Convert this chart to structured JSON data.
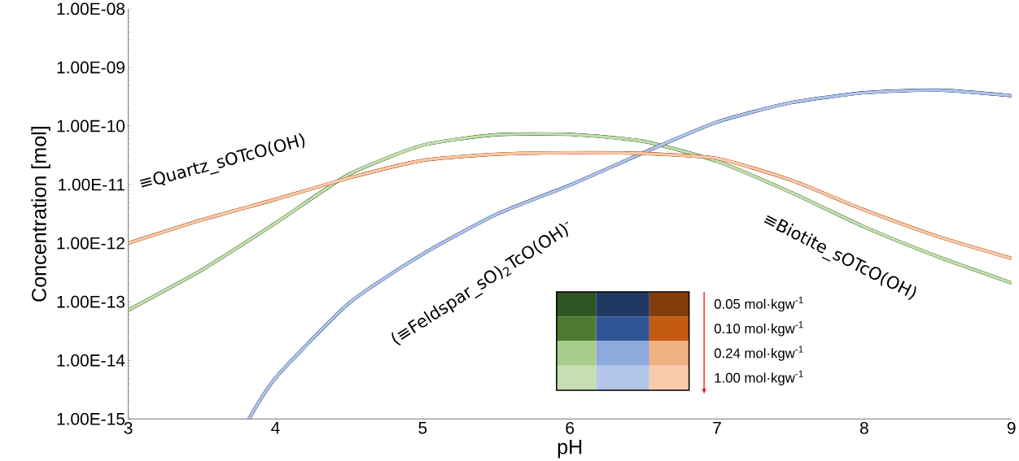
{
  "chart_data": {
    "type": "line",
    "xlabel": "pH",
    "ylabel": "Concentration [mol]",
    "log": "y",
    "xlim": [
      3,
      9
    ],
    "xticks": [
      3,
      4,
      5,
      6,
      7,
      8,
      9
    ],
    "ylim": [
      1e-15,
      1e-08
    ],
    "yticks": [
      {
        "value": 1e-15,
        "label": "1.00E-15"
      },
      {
        "value": 1e-14,
        "label": "1.00E-14"
      },
      {
        "value": 1e-13,
        "label": "1.00E-13"
      },
      {
        "value": 1e-12,
        "label": "1.00E-12"
      },
      {
        "value": 1e-11,
        "label": "1.00E-11"
      },
      {
        "value": 1e-10,
        "label": "1.00E-10"
      },
      {
        "value": 1e-09,
        "label": "1.00E-09"
      },
      {
        "value": 1e-08,
        "label": "1.00E-08"
      }
    ],
    "grid": false,
    "marker": "none",
    "line_style": "solid",
    "annotations": [
      "≡Quartz_sOTcO(OH)",
      "(≡Feldspar_sO)$_{2}$TcO(OH)$^{-}$",
      "≡Biotite_sOTcO(OH)",
      "0.05 mol·kgw$^{-1}$",
      "0.10 mol·kgw$^{-1}$",
      "0.24 mol·kgw$^{-1}$",
      "1.00 mol·kgw$^{-1}$"
    ],
    "series": [
      {
        "color": "#2f5522",
        "x": [
          3,
          3.5,
          4,
          4.5,
          5,
          5.5,
          6,
          6.5,
          7,
          7.5,
          8,
          8.5,
          9
        ],
        "values": [
          7.2e-14,
          3.5e-13,
          2.2e-12,
          1.5e-11,
          4.7e-11,
          7.1e-11,
          7.2e-11,
          5.5e-11,
          2.5e-11,
          7.4e-12,
          1.9e-12,
          5.9e-13,
          2.1e-13
        ]
      },
      {
        "color": "#4e7b31",
        "x": [
          3,
          3.5,
          4,
          4.5,
          5,
          5.5,
          6,
          6.5,
          7,
          7.5,
          8,
          8.5,
          9
        ],
        "values": [
          7.2e-14,
          3.5e-13,
          2.2e-12,
          1.5e-11,
          4.7e-11,
          7.1e-11,
          7.2e-11,
          5.5e-11,
          2.5e-11,
          7.4e-12,
          1.9e-12,
          5.9e-13,
          2.1e-13
        ]
      },
      {
        "color": "#a8cd8b",
        "x": [
          3,
          3.5,
          4,
          4.5,
          5,
          5.5,
          6,
          6.5,
          7,
          7.5,
          8,
          8.5,
          9
        ],
        "values": [
          7.2e-14,
          3.5e-13,
          2.2e-12,
          1.5e-11,
          4.7e-11,
          7.1e-11,
          7.2e-11,
          5.5e-11,
          2.5e-11,
          7.4e-12,
          1.9e-12,
          5.9e-13,
          2.1e-13
        ]
      },
      {
        "color": "#c5dfb1",
        "x": [
          3,
          3.5,
          4,
          4.5,
          5,
          5.5,
          6,
          6.5,
          7,
          7.5,
          8,
          8.5,
          9
        ],
        "values": [
          7.2e-14,
          3.5e-13,
          2.2e-12,
          1.5e-11,
          4.7e-11,
          7.1e-11,
          7.2e-11,
          5.5e-11,
          2.5e-11,
          7.4e-12,
          1.9e-12,
          5.9e-13,
          2.1e-13
        ]
      },
      {
        "color": "#203864",
        "x": [
          3.82,
          4,
          4.5,
          5,
          5.5,
          6,
          6.5,
          7,
          7.5,
          8,
          8.5,
          9
        ],
        "values": [
          1e-15,
          5e-15,
          9.5e-14,
          6.5e-13,
          3.1e-12,
          9.8e-12,
          3.5e-11,
          1.17e-10,
          2.5e-10,
          3.7e-10,
          4.1e-10,
          3.3e-10
        ]
      },
      {
        "color": "#2f5597",
        "x": [
          3.82,
          4,
          4.5,
          5,
          5.5,
          6,
          6.5,
          7,
          7.5,
          8,
          8.5,
          9
        ],
        "values": [
          1e-15,
          5e-15,
          9.5e-14,
          6.5e-13,
          3.1e-12,
          9.8e-12,
          3.5e-11,
          1.17e-10,
          2.5e-10,
          3.7e-10,
          4.1e-10,
          3.3e-10
        ]
      },
      {
        "color": "#8ea9db",
        "x": [
          3.82,
          4,
          4.5,
          5,
          5.5,
          6,
          6.5,
          7,
          7.5,
          8,
          8.5,
          9
        ],
        "values": [
          1e-15,
          5e-15,
          9.5e-14,
          6.5e-13,
          3.1e-12,
          9.8e-12,
          3.5e-11,
          1.17e-10,
          2.5e-10,
          3.7e-10,
          4.1e-10,
          3.3e-10
        ]
      },
      {
        "color": "#b4c6e7",
        "x": [
          3.82,
          4,
          4.5,
          5,
          5.5,
          6,
          6.5,
          7,
          7.5,
          8,
          8.5,
          9
        ],
        "values": [
          1e-15,
          5e-15,
          9.5e-14,
          6.5e-13,
          3.1e-12,
          9.8e-12,
          3.5e-11,
          1.17e-10,
          2.5e-10,
          3.7e-10,
          4.1e-10,
          3.3e-10
        ]
      },
      {
        "color": "#843c0c",
        "x": [
          3,
          3.5,
          4,
          4.5,
          5,
          5.5,
          6,
          6.5,
          7,
          7.5,
          8,
          8.5,
          9
        ],
        "values": [
          1e-12,
          2.5e-12,
          5.6e-12,
          1.3e-11,
          2.6e-11,
          3.3e-11,
          3.5e-11,
          3.4e-11,
          2.8e-11,
          1.2e-11,
          3.7e-12,
          1.3e-12,
          5.5e-13
        ]
      },
      {
        "color": "#c55a11",
        "x": [
          3,
          3.5,
          4,
          4.5,
          5,
          5.5,
          6,
          6.5,
          7,
          7.5,
          8,
          8.5,
          9
        ],
        "values": [
          1e-12,
          2.5e-12,
          5.6e-12,
          1.3e-11,
          2.6e-11,
          3.3e-11,
          3.5e-11,
          3.4e-11,
          2.8e-11,
          1.2e-11,
          3.7e-12,
          1.3e-12,
          5.5e-13
        ]
      },
      {
        "color": "#f0b183",
        "x": [
          3,
          3.5,
          4,
          4.5,
          5,
          5.5,
          6,
          6.5,
          7,
          7.5,
          8,
          8.5,
          9
        ],
        "values": [
          1e-12,
          2.5e-12,
          5.6e-12,
          1.3e-11,
          2.6e-11,
          3.3e-11,
          3.5e-11,
          3.4e-11,
          2.8e-11,
          1.2e-11,
          3.7e-12,
          1.3e-12,
          5.5e-13
        ]
      },
      {
        "color": "#f8cbad",
        "x": [
          3,
          3.5,
          4,
          4.5,
          5,
          5.5,
          6,
          6.5,
          7,
          7.5,
          8,
          8.5,
          9
        ],
        "values": [
          1e-12,
          2.5e-12,
          5.6e-12,
          1.3e-11,
          2.6e-11,
          3.3e-11,
          3.5e-11,
          3.4e-11,
          2.8e-11,
          1.2e-11,
          3.7e-12,
          1.3e-12,
          5.5e-13
        ]
      }
    ]
  }
}
